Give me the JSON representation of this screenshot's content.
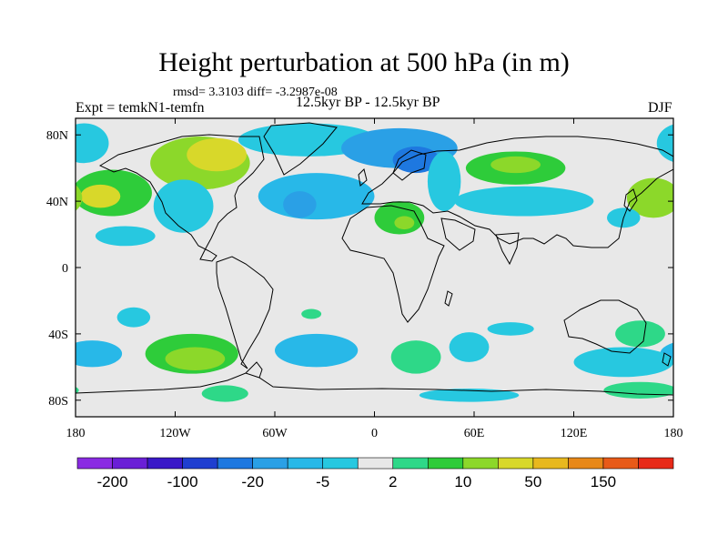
{
  "chart_data": {
    "type": "heatmap",
    "title": "Height perturbation at 500 hPa (in m)",
    "stats_text": "rmsd= 3.3103 diff= -3.2987e-08",
    "left_label": "Expt = temkN1-temfn",
    "center_label": "12.5kyr BP - 12.5kyr BP",
    "right_label": "DJF",
    "xlim": [
      -180,
      180
    ],
    "ylim": [
      -90,
      90
    ],
    "x_ticks": [
      {
        "value": -180,
        "label": "180"
      },
      {
        "value": -120,
        "label": "120W"
      },
      {
        "value": -60,
        "label": "60W"
      },
      {
        "value": 0,
        "label": "0"
      },
      {
        "value": 60,
        "label": "60E"
      },
      {
        "value": 120,
        "label": "120E"
      },
      {
        "value": 180,
        "label": "180"
      }
    ],
    "y_ticks": [
      {
        "value": 80,
        "label": "80N"
      },
      {
        "value": 40,
        "label": "40N"
      },
      {
        "value": 0,
        "label": "0"
      },
      {
        "value": -40,
        "label": "40S"
      },
      {
        "value": -80,
        "label": "80S"
      }
    ],
    "colorbar": {
      "levels": [
        -200,
        -150,
        -100,
        -50,
        -20,
        -10,
        -5,
        -2,
        2,
        5,
        10,
        20,
        50,
        100,
        150,
        200
      ],
      "colors": [
        "#8a2be2",
        "#6a1fd6",
        "#3a18c8",
        "#1f3fd0",
        "#1e78e0",
        "#2aa0e6",
        "#28b8e8",
        "#27c8e0",
        "#e8e8e8",
        "#2ed888",
        "#2ecc3a",
        "#8cd82a",
        "#d8d82a",
        "#e8b81e",
        "#e88818",
        "#e85a18",
        "#e82a18"
      ],
      "tick_labels": [
        {
          "level": -200,
          "label": "-200"
        },
        {
          "level": -100,
          "label": "-100"
        },
        {
          "level": -20,
          "label": "-20"
        },
        {
          "level": -5,
          "label": "-5"
        },
        {
          "level": 2,
          "label": "2"
        },
        {
          "level": 10,
          "label": "10"
        },
        {
          "level": 50,
          "label": "50"
        },
        {
          "level": 150,
          "label": "150"
        }
      ]
    },
    "anomaly_regions": [
      {
        "lon": -105,
        "lat": 63,
        "rlon": 30,
        "rlat": 16,
        "value": 15
      },
      {
        "lon": -95,
        "lat": 68,
        "rlon": 18,
        "rlat": 10,
        "value": 30
      },
      {
        "lon": -158,
        "lat": 45,
        "rlon": 24,
        "rlat": 14,
        "value": 8
      },
      {
        "lon": -165,
        "lat": 43,
        "rlon": 12,
        "rlat": 7,
        "value": 25
      },
      {
        "lon": -175,
        "lat": 75,
        "rlon": 15,
        "rlat": 12,
        "value": -4
      },
      {
        "lon": -115,
        "lat": 37,
        "rlon": 18,
        "rlat": 16,
        "value": -5
      },
      {
        "lon": -40,
        "lat": 77,
        "rlon": 42,
        "rlat": 10,
        "value": -5
      },
      {
        "lon": -35,
        "lat": 43,
        "rlon": 35,
        "rlat": 14,
        "value": -6
      },
      {
        "lon": -45,
        "lat": 38,
        "rlon": 10,
        "rlat": 8,
        "value": -12
      },
      {
        "lon": 15,
        "lat": 72,
        "rlon": 35,
        "rlat": 12,
        "value": -15
      },
      {
        "lon": 25,
        "lat": 65,
        "rlon": 14,
        "rlat": 8,
        "value": -25
      },
      {
        "lon": 42,
        "lat": 52,
        "rlon": 10,
        "rlat": 18,
        "value": -5
      },
      {
        "lon": 15,
        "lat": 30,
        "rlon": 15,
        "rlat": 10,
        "value": 5
      },
      {
        "lon": 18,
        "lat": 27,
        "rlon": 6,
        "rlat": 4,
        "value": 12
      },
      {
        "lon": 85,
        "lat": 60,
        "rlon": 30,
        "rlat": 10,
        "value": 8
      },
      {
        "lon": 85,
        "lat": 62,
        "rlon": 15,
        "rlat": 5,
        "value": 15
      },
      {
        "lon": 90,
        "lat": 40,
        "rlon": 42,
        "rlat": 9,
        "value": -5
      },
      {
        "lon": 168,
        "lat": 42,
        "rlon": 16,
        "rlat": 12,
        "value": 12
      },
      {
        "lon": 150,
        "lat": 30,
        "rlon": 10,
        "rlat": 6,
        "value": -4
      },
      {
        "lon": -150,
        "lat": 19,
        "rlon": 18,
        "rlat": 6,
        "value": -3
      },
      {
        "lon": -170,
        "lat": -52,
        "rlon": 18,
        "rlat": 8,
        "value": -6
      },
      {
        "lon": -110,
        "lat": -52,
        "rlon": 28,
        "rlat": 12,
        "value": 6
      },
      {
        "lon": -108,
        "lat": -55,
        "rlon": 18,
        "rlat": 7,
        "value": 18
      },
      {
        "lon": -145,
        "lat": -30,
        "rlon": 10,
        "rlat": 6,
        "value": -3
      },
      {
        "lon": -35,
        "lat": -50,
        "rlon": 25,
        "rlat": 10,
        "value": -6
      },
      {
        "lon": -38,
        "lat": -28,
        "rlon": 6,
        "rlat": 3,
        "value": 3
      },
      {
        "lon": 25,
        "lat": -54,
        "rlon": 15,
        "rlat": 10,
        "value": 4
      },
      {
        "lon": 82,
        "lat": -37,
        "rlon": 14,
        "rlat": 4,
        "value": -3
      },
      {
        "lon": 57,
        "lat": -48,
        "rlon": 12,
        "rlat": 9,
        "value": -5
      },
      {
        "lon": -90,
        "lat": -76,
        "rlon": 14,
        "rlat": 5,
        "value": 4
      },
      {
        "lon": 57,
        "lat": -77,
        "rlon": 30,
        "rlat": 4,
        "value": -3
      },
      {
        "lon": 160,
        "lat": -40,
        "rlon": 15,
        "rlat": 8,
        "value": 4
      },
      {
        "lon": 150,
        "lat": -57,
        "rlon": 30,
        "rlat": 9,
        "value": -5
      },
      {
        "lon": 160,
        "lat": -74,
        "rlon": 22,
        "rlat": 5,
        "value": 3
      }
    ]
  }
}
